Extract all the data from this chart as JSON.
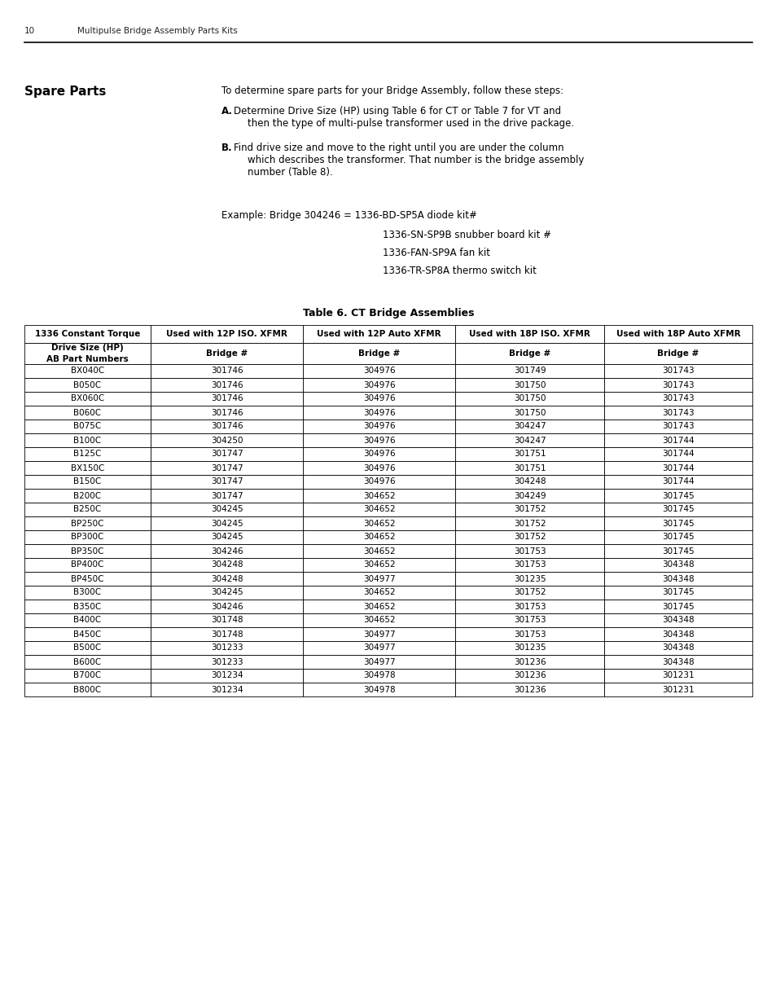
{
  "page_num": "10",
  "header_text": "Multipulse Bridge Assembly Parts Kits",
  "section_title": "Spare Parts",
  "intro_text": "To determine spare parts for your Bridge Assembly, follow these steps:",
  "step_a_label": "A.",
  "step_a_line1": "Determine Drive Size (HP) using Table 6 for CT or Table 7 for VT and",
  "step_a_line2": "then the type of multi-pulse transformer used in the drive package.",
  "step_b_label": "B.",
  "step_b_line1": "Find drive size and move to the right until you are under the column",
  "step_b_line2": "which describes the transformer. That number is the bridge assembly",
  "step_b_line3": "number (Table 8).",
  "example_line": "Example: Bridge 304246 = 1336-BD-SP5A diode kit#",
  "kit_lines": [
    "1336-SN-SP9B snubber board kit #",
    "1336-FAN-SP9A fan kit",
    "1336-TR-SP8A thermo switch kit"
  ],
  "table_title": "Table 6. CT Bridge Assemblies",
  "col_headers": [
    "1336 Constant Torque",
    "Used with 12P ISO. XFMR",
    "Used with 12P Auto XFMR",
    "Used with 18P ISO. XFMR",
    "Used with 18P Auto XFMR"
  ],
  "sub_header_col0_line1": "Drive Size (HP)",
  "sub_header_col0_line2": "AB Part Numbers",
  "sub_header_bridge": "Bridge #",
  "rows": [
    [
      "BX040C",
      "301746",
      "304976",
      "301749",
      "301743"
    ],
    [
      "B050C",
      "301746",
      "304976",
      "301750",
      "301743"
    ],
    [
      "BX060C",
      "301746",
      "304976",
      "301750",
      "301743"
    ],
    [
      "B060C",
      "301746",
      "304976",
      "301750",
      "301743"
    ],
    [
      "B075C",
      "301746",
      "304976",
      "304247",
      "301743"
    ],
    [
      "B100C",
      "304250",
      "304976",
      "304247",
      "301744"
    ],
    [
      "B125C",
      "301747",
      "304976",
      "301751",
      "301744"
    ],
    [
      "BX150C",
      "301747",
      "304976",
      "301751",
      "301744"
    ],
    [
      "B150C",
      "301747",
      "304976",
      "304248",
      "301744"
    ],
    [
      "B200C",
      "301747",
      "304652",
      "304249",
      "301745"
    ],
    [
      "B250C",
      "304245",
      "304652",
      "301752",
      "301745"
    ],
    [
      "BP250C",
      "304245",
      "304652",
      "301752",
      "301745"
    ],
    [
      "BP300C",
      "304245",
      "304652",
      "301752",
      "301745"
    ],
    [
      "BP350C",
      "304246",
      "304652",
      "301753",
      "301745"
    ],
    [
      "BP400C",
      "304248",
      "304652",
      "301753",
      "304348"
    ],
    [
      "BP450C",
      "304248",
      "304977",
      "301235",
      "304348"
    ],
    [
      "B300C",
      "304245",
      "304652",
      "301752",
      "301745"
    ],
    [
      "B350C",
      "304246",
      "304652",
      "301753",
      "301745"
    ],
    [
      "B400C",
      "301748",
      "304652",
      "301753",
      "304348"
    ],
    [
      "B450C",
      "301748",
      "304977",
      "301753",
      "304348"
    ],
    [
      "B500C",
      "301233",
      "304977",
      "301235",
      "304348"
    ],
    [
      "B600C",
      "301233",
      "304977",
      "301236",
      "304348"
    ],
    [
      "B700C",
      "301234",
      "304978",
      "301236",
      "301231"
    ],
    [
      "B800C",
      "301234",
      "304978",
      "301236",
      "301231"
    ]
  ],
  "bg_color": "#ffffff",
  "text_color": "#000000",
  "line_color": "#000000"
}
